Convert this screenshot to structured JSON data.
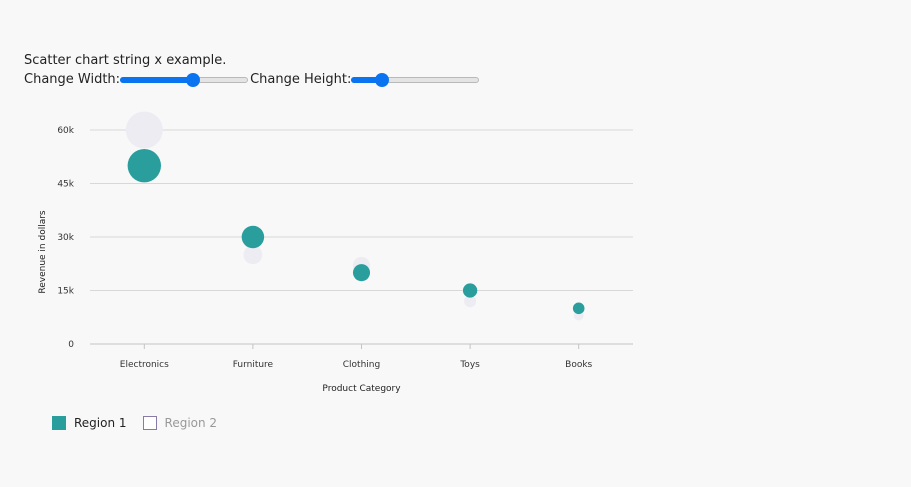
{
  "header": {
    "title": "Scatter chart string x example.",
    "width_label": "Change Width:",
    "height_label": "Change Height:",
    "width_slider": {
      "value": 0.57
    },
    "height_slider": {
      "value": 0.24
    }
  },
  "colors": {
    "region1": "#2a9d9d",
    "region2": "#eeecf3",
    "region2_border": "#8a7aa8",
    "grid": "#d8d8d8",
    "slider": "#0a74f0"
  },
  "chart_data": {
    "type": "scatter",
    "categories": [
      "Electronics",
      "Furniture",
      "Clothing",
      "Toys",
      "Books"
    ],
    "xlabel": "Product Category",
    "ylabel": "Revenue in dollars",
    "ylim": [
      0,
      60000
    ],
    "yticks": [
      0,
      15000,
      30000,
      45000,
      60000
    ],
    "ytick_labels": [
      "0",
      "15k",
      "30k",
      "45k",
      "60k"
    ],
    "grid": true,
    "legend_position": "bottom-left",
    "series": [
      {
        "name": "Region 1",
        "values": [
          50000,
          30000,
          20000,
          15000,
          10000
        ],
        "visible": true
      },
      {
        "name": "Region 2",
        "values": [
          60000,
          25000,
          22000,
          12000,
          8000
        ],
        "visible": false
      }
    ]
  }
}
